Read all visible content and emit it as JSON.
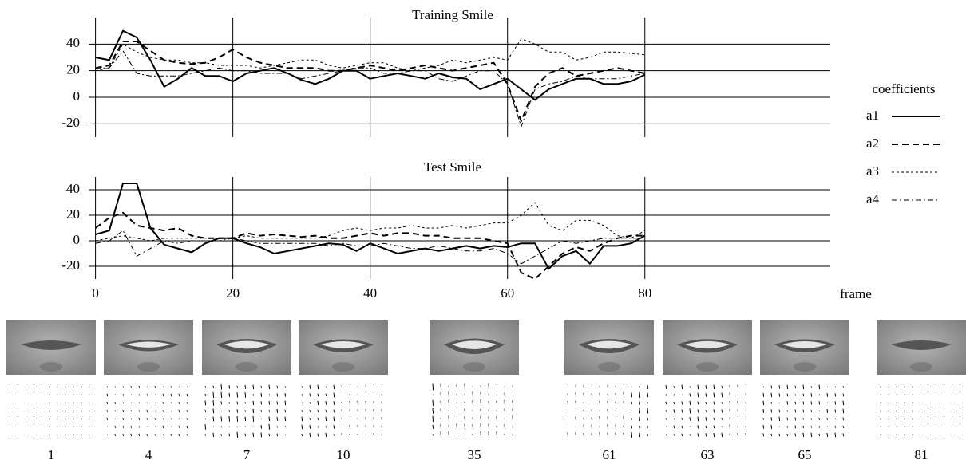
{
  "chart_data": [
    {
      "type": "line",
      "title": "Training Smile",
      "xlim": [
        -1,
        107
      ],
      "xticks": [
        0,
        20,
        40,
        60,
        80
      ],
      "show_xtick_labels": false,
      "ylim": [
        -30,
        60
      ],
      "yticks": [
        -20,
        0,
        20,
        40
      ],
      "grid": true,
      "x": [
        0,
        2,
        4,
        6,
        8,
        10,
        12,
        14,
        16,
        18,
        20,
        22,
        24,
        26,
        28,
        30,
        32,
        34,
        36,
        38,
        40,
        42,
        44,
        46,
        48,
        50,
        52,
        54,
        56,
        58,
        60,
        62,
        64,
        66,
        68,
        70,
        72,
        74,
        76,
        78,
        80
      ],
      "series": [
        {
          "name": "a1",
          "color": "#000000",
          "width": 2,
          "dash": "none",
          "values": [
            30,
            28,
            50,
            45,
            28,
            8,
            14,
            22,
            16,
            16,
            12,
            18,
            20,
            22,
            18,
            13,
            10,
            14,
            20,
            20,
            14,
            16,
            18,
            16,
            14,
            18,
            15,
            14,
            6,
            10,
            14,
            6,
            -2,
            6,
            10,
            14,
            14,
            10,
            10,
            12,
            17
          ]
        },
        {
          "name": "a2",
          "color": "#000000",
          "width": 2,
          "dash": "8,5",
          "values": [
            22,
            24,
            42,
            42,
            35,
            28,
            26,
            25,
            26,
            30,
            36,
            30,
            26,
            24,
            22,
            22,
            22,
            20,
            20,
            22,
            24,
            22,
            20,
            22,
            24,
            22,
            20,
            22,
            24,
            26,
            10,
            -18,
            8,
            18,
            22,
            16,
            18,
            20,
            22,
            20,
            18
          ]
        },
        {
          "name": "a3",
          "color": "#000000",
          "width": 1,
          "dash": "3,3",
          "values": [
            20,
            22,
            40,
            34,
            30,
            28,
            28,
            26,
            26,
            24,
            24,
            24,
            22,
            24,
            26,
            28,
            28,
            24,
            22,
            24,
            26,
            26,
            22,
            20,
            22,
            24,
            28,
            26,
            28,
            30,
            28,
            44,
            40,
            34,
            34,
            28,
            30,
            34,
            34,
            33,
            32
          ]
        },
        {
          "name": "a4",
          "color": "#000000",
          "width": 1,
          "dash": "7,3,2,3",
          "values": [
            22,
            22,
            35,
            18,
            16,
            16,
            16,
            18,
            20,
            22,
            20,
            20,
            18,
            18,
            18,
            14,
            16,
            18,
            20,
            22,
            22,
            18,
            18,
            20,
            20,
            14,
            12,
            16,
            20,
            20,
            10,
            -22,
            6,
            10,
            12,
            16,
            14,
            14,
            14,
            16,
            18
          ]
        }
      ]
    },
    {
      "type": "line",
      "title": "Test Smile",
      "xlim": [
        -1,
        107
      ],
      "xticks": [
        0,
        20,
        40,
        60,
        80
      ],
      "show_xtick_labels": true,
      "xlabel": "frame",
      "ylim": [
        -30,
        50
      ],
      "yticks": [
        -20,
        0,
        20,
        40
      ],
      "grid": true,
      "x": [
        0,
        2,
        4,
        6,
        8,
        10,
        12,
        14,
        16,
        18,
        20,
        22,
        24,
        26,
        28,
        30,
        32,
        34,
        36,
        38,
        40,
        42,
        44,
        46,
        48,
        50,
        52,
        54,
        56,
        58,
        60,
        62,
        64,
        66,
        68,
        70,
        72,
        74,
        76,
        78,
        80
      ],
      "series": [
        {
          "color": "#000000",
          "width": 2,
          "dash": "none",
          "values": [
            5,
            8,
            45,
            45,
            10,
            -3,
            -6,
            -9,
            -2,
            2,
            2,
            -2,
            -5,
            -10,
            -8,
            -6,
            -4,
            -2,
            -3,
            -8,
            -2,
            -6,
            -10,
            -8,
            -6,
            -8,
            -6,
            -4,
            -6,
            -4,
            -5,
            -2,
            -2,
            -22,
            -12,
            -8,
            -18,
            -4,
            -4,
            -2,
            4
          ]
        },
        {
          "color": "#000000",
          "width": 2,
          "dash": "8,5",
          "values": [
            10,
            18,
            22,
            12,
            10,
            8,
            10,
            4,
            2,
            2,
            2,
            6,
            4,
            5,
            4,
            3,
            4,
            2,
            2,
            4,
            6,
            4,
            6,
            6,
            4,
            4,
            2,
            2,
            2,
            0,
            -2,
            -25,
            -30,
            -20,
            -10,
            -5,
            -8,
            -2,
            2,
            4,
            4
          ]
        },
        {
          "color": "#000000",
          "width": 1,
          "dash": "3,3",
          "values": [
            0,
            2,
            4,
            2,
            0,
            2,
            2,
            2,
            2,
            2,
            2,
            4,
            2,
            2,
            2,
            2,
            2,
            4,
            8,
            10,
            8,
            10,
            10,
            12,
            10,
            10,
            12,
            10,
            12,
            14,
            14,
            20,
            30,
            12,
            8,
            16,
            16,
            12,
            4,
            2,
            8
          ]
        },
        {
          "color": "#000000",
          "width": 1,
          "dash": "7,3,2,3",
          "values": [
            -2,
            0,
            8,
            -12,
            -6,
            0,
            -2,
            0,
            0,
            0,
            2,
            0,
            -2,
            -2,
            -2,
            -2,
            -2,
            -4,
            -2,
            -4,
            -4,
            -2,
            -4,
            -6,
            -6,
            -4,
            -6,
            -8,
            -8,
            -6,
            -10,
            -18,
            -12,
            -6,
            0,
            -2,
            0,
            2,
            2,
            2,
            2
          ]
        }
      ]
    }
  ],
  "legend": {
    "title": "coefficients"
  },
  "frames": {
    "labels": [
      "1",
      "4",
      "7",
      "10",
      "35",
      "61",
      "63",
      "65",
      "81"
    ]
  }
}
